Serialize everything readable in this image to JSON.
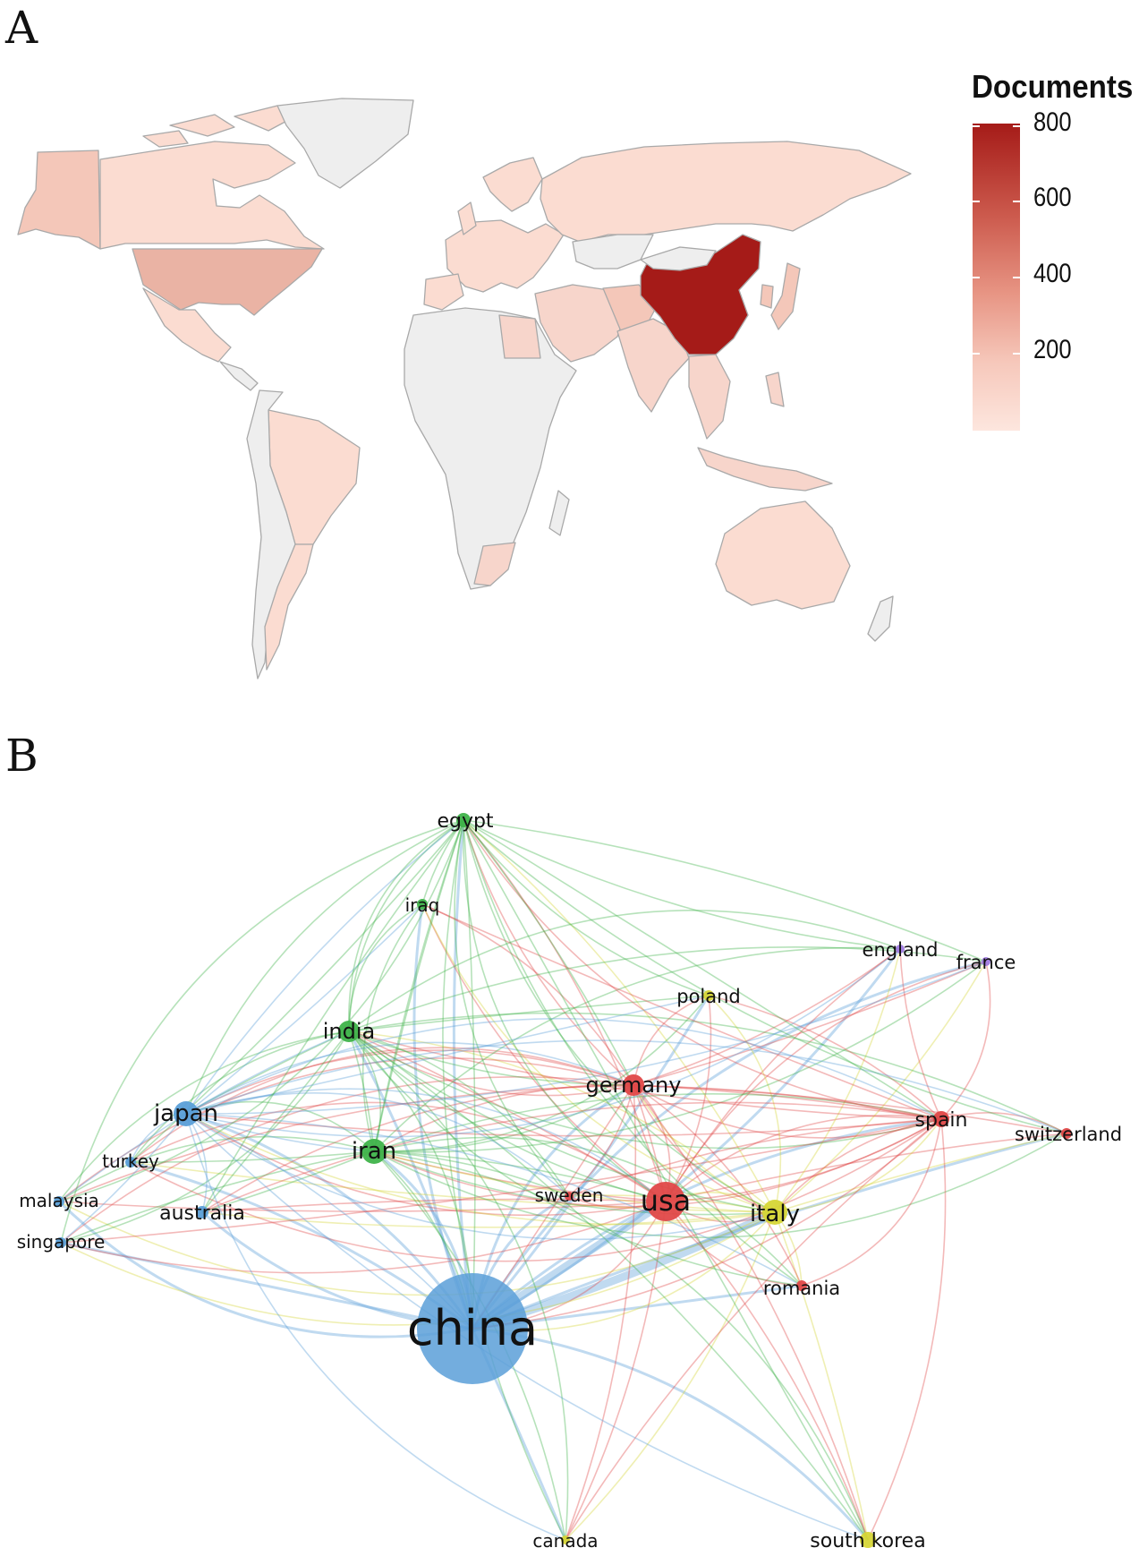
{
  "panels": {
    "a": "A",
    "b": "B"
  },
  "legend": {
    "title": "Documents",
    "ticks": [
      "800",
      "600",
      "400",
      "200"
    ],
    "tick_values": [
      800,
      600,
      400,
      200
    ],
    "range": [
      0,
      860
    ],
    "colors": {
      "high": "#a51b18",
      "low": "#fde6de",
      "no_data": "#eeeeee"
    }
  },
  "map": {
    "regions": [
      {
        "name": "china",
        "level": 820,
        "fill": "#a51b18"
      },
      {
        "name": "usa",
        "level": 230,
        "fill": "#eab3a4"
      },
      {
        "name": "india",
        "level": 110,
        "fill": "#f7d5cb"
      },
      {
        "name": "other",
        "level": 40,
        "fill": "#fbe0d7"
      },
      {
        "name": "no-data",
        "level": 0,
        "fill": "#eeeeee"
      }
    ]
  },
  "network": {
    "nodes": [
      {
        "id": "china",
        "label": "china",
        "cluster": "blue"
      },
      {
        "id": "usa",
        "label": "usa",
        "cluster": "red"
      },
      {
        "id": "italy",
        "label": "italy",
        "cluster": "yellow"
      },
      {
        "id": "germany",
        "label": "germany",
        "cluster": "red"
      },
      {
        "id": "spain",
        "label": "spain",
        "cluster": "red"
      },
      {
        "id": "switzerland",
        "label": "switzerland",
        "cluster": "red"
      },
      {
        "id": "romania",
        "label": "romania",
        "cluster": "red"
      },
      {
        "id": "sweden",
        "label": "sweden",
        "cluster": "red"
      },
      {
        "id": "iran",
        "label": "iran",
        "cluster": "green"
      },
      {
        "id": "india",
        "label": "india",
        "cluster": "green"
      },
      {
        "id": "egypt",
        "label": "egypt",
        "cluster": "green"
      },
      {
        "id": "iraq",
        "label": "iraq",
        "cluster": "green"
      },
      {
        "id": "japan",
        "label": "japan",
        "cluster": "blue"
      },
      {
        "id": "turkey",
        "label": "turkey",
        "cluster": "blue"
      },
      {
        "id": "malaysia",
        "label": "malaysia",
        "cluster": "blue"
      },
      {
        "id": "singapore",
        "label": "singapore",
        "cluster": "blue"
      },
      {
        "id": "australia",
        "label": "australia",
        "cluster": "blue"
      },
      {
        "id": "england",
        "label": "england",
        "cluster": "purple"
      },
      {
        "id": "france",
        "label": "france",
        "cluster": "purple"
      },
      {
        "id": "poland",
        "label": "poland",
        "cluster": "yellow"
      },
      {
        "id": "canada",
        "label": "canada",
        "cluster": "yellow"
      },
      {
        "id": "south-korea",
        "label": "south korea",
        "cluster": "yellow"
      }
    ],
    "cluster_colors": {
      "blue": "#5a9fd8",
      "red": "#e04848",
      "green": "#3fb34a",
      "yellow": "#d6d636",
      "purple": "#a07be0"
    }
  }
}
